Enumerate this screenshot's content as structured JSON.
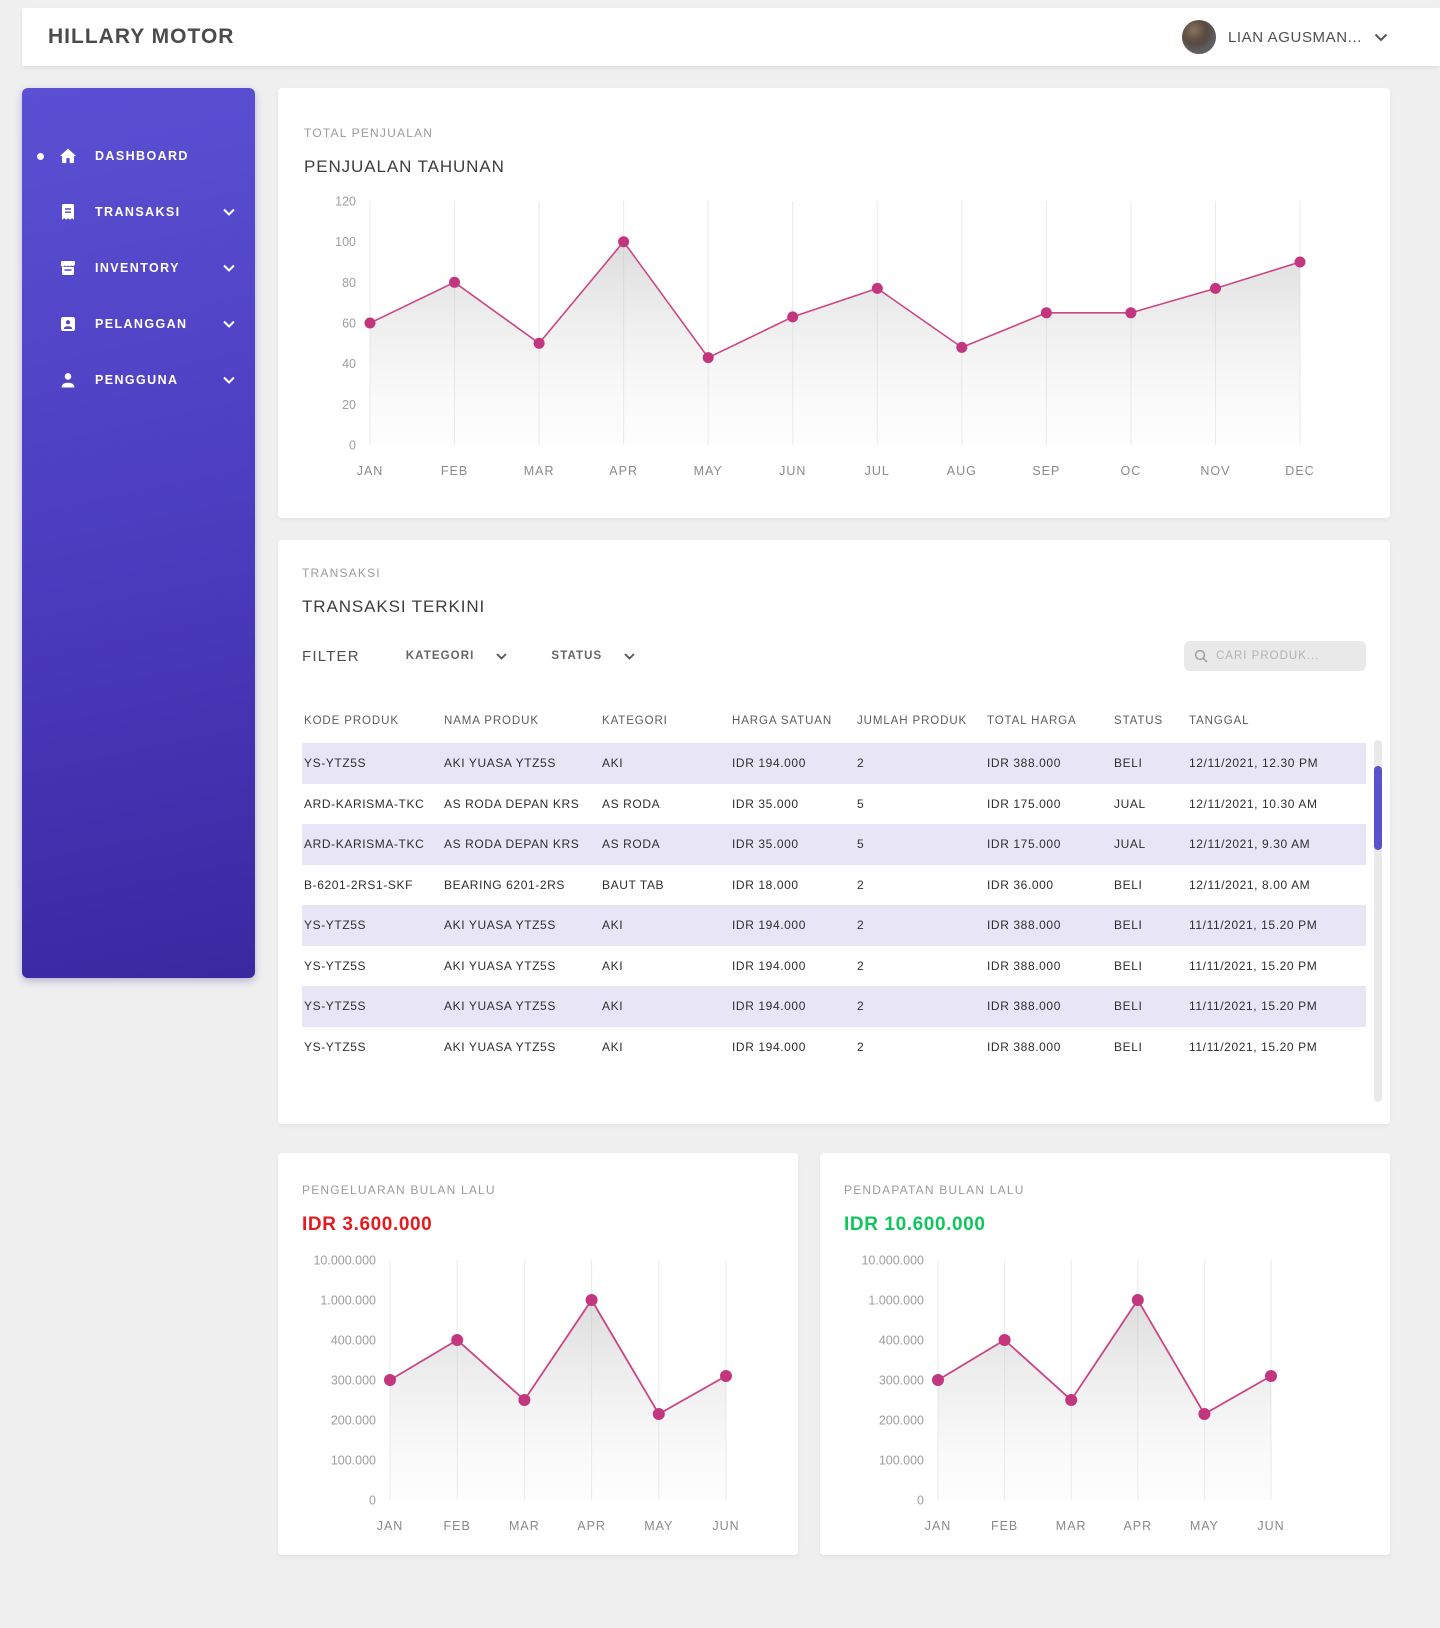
{
  "header": {
    "brand": "HILLARY MOTOR",
    "user_name": "LIAN AGUSMAN..."
  },
  "sidebar": {
    "items": [
      {
        "label": "DASHBOARD",
        "icon": "home-icon",
        "active": true
      },
      {
        "label": "TRANSAKSI",
        "icon": "receipt-icon",
        "expandable": true
      },
      {
        "label": "INVENTORY",
        "icon": "store-icon",
        "expandable": true
      },
      {
        "label": "PELANGGAN",
        "icon": "customer-icon",
        "expandable": true
      },
      {
        "label": "PENGGUNA",
        "icon": "user-icon",
        "expandable": true
      }
    ]
  },
  "sales_card": {
    "eyebrow": "TOTAL PENJUALAN",
    "title": "PENJUALAN TAHUNAN"
  },
  "transactions_card": {
    "eyebrow": "TRANSAKSI",
    "title": "TRANSAKSI TERKINI",
    "filter_label": "FILTER",
    "filters": [
      {
        "label": "KATEGORI"
      },
      {
        "label": "STATUS"
      }
    ],
    "search_placeholder": "CARI PRODUK...",
    "columns": [
      "KODE PRODUK",
      "NAMA PRODUK",
      "KATEGORI",
      "HARGA SATUAN",
      "JUMLAH PRODUK",
      "TOTAL HARGA",
      "STATUS",
      "TANGGAL"
    ],
    "rows": [
      [
        "YS-YTZ5S",
        "AKI YUASA YTZ5S",
        "AKI",
        "IDR 194.000",
        "2",
        "IDR 388.000",
        "BELI",
        "12/11/2021,  12.30 PM"
      ],
      [
        "ARD-KARISMA-TKC",
        "AS RODA DEPAN KRS",
        "AS RODA",
        "IDR 35.000",
        "5",
        "IDR 175.000",
        "JUAL",
        "12/11/2021,  10.30 AM"
      ],
      [
        "ARD-KARISMA-TKC",
        "AS RODA DEPAN KRS",
        "AS RODA",
        "IDR 35.000",
        "5",
        "IDR 175.000",
        "JUAL",
        "12/11/2021,  9.30 AM"
      ],
      [
        "B-6201-2RS1-SKF",
        "BEARING 6201-2RS",
        "BAUT TAB",
        "IDR 18.000",
        "2",
        "IDR 36.000",
        "BELI",
        "12/11/2021,  8.00 AM"
      ],
      [
        "YS-YTZ5S",
        "AKI YUASA YTZ5S",
        "AKI",
        "IDR 194.000",
        "2",
        "IDR 388.000",
        "BELI",
        "11/11/2021,  15.20 PM"
      ],
      [
        "YS-YTZ5S",
        "AKI YUASA YTZ5S",
        "AKI",
        "IDR 194.000",
        "2",
        "IDR 388.000",
        "BELI",
        "11/11/2021,  15.20 PM"
      ],
      [
        "YS-YTZ5S",
        "AKI YUASA YTZ5S",
        "AKI",
        "IDR 194.000",
        "2",
        "IDR 388.000",
        "BELI",
        "11/11/2021,  15.20 PM"
      ],
      [
        "YS-YTZ5S",
        "AKI YUASA YTZ5S",
        "AKI",
        "IDR 194.000",
        "2",
        "IDR 388.000",
        "BELI",
        "11/11/2021,  15.20 PM"
      ]
    ]
  },
  "expense_card": {
    "eyebrow": "PENGELUARAN BULAN LALU",
    "amount": "IDR 3.600.000",
    "amount_color": "#e51b20"
  },
  "income_card": {
    "eyebrow": "PENDAPATAN BULAN LALU",
    "amount": "IDR 10.600.000",
    "amount_color": "#10c55b"
  },
  "chart_data": [
    {
      "name": "penjualan-tahunan",
      "type": "line",
      "title": "PENJUALAN TAHUNAN",
      "categories": [
        "JAN",
        "FEB",
        "MAR",
        "APR",
        "MAY",
        "JUN",
        "JUL",
        "AUG",
        "SEP",
        "OC",
        "NOV",
        "DEC"
      ],
      "values": [
        60,
        80,
        50,
        100,
        43,
        63,
        77,
        48,
        65,
        65,
        77,
        90
      ],
      "ytick_values": [
        0,
        20,
        40,
        60,
        80,
        100,
        120
      ],
      "ytick_labels": [
        "0",
        "20",
        "40",
        "60",
        "80",
        "100",
        "120"
      ],
      "ylim": [
        0,
        120
      ],
      "grid": "vertical",
      "legend": "none",
      "line_color": "#cb4687",
      "point_color": "#c23680",
      "fill": "gray-gradient"
    },
    {
      "name": "pengeluaran-bulan-lalu",
      "type": "line",
      "title": "PENGELUARAN BULAN LALU",
      "categories": [
        "JAN",
        "FEB",
        "MAR",
        "APR",
        "MAY",
        "JUN"
      ],
      "values": [
        300000,
        400000,
        250000,
        1000000,
        215000,
        310000
      ],
      "ytick_values": [
        0,
        100000,
        200000,
        300000,
        400000,
        1000000,
        10000000
      ],
      "ytick_labels": [
        "0",
        "100.000",
        "200.000",
        "300.000",
        "400.000",
        "1.000.000",
        "10.000.000"
      ],
      "yscale": "ordinal-between-ticks",
      "grid": "vertical",
      "legend": "none",
      "line_color": "#cb4687",
      "point_color": "#c23680",
      "fill": "gray-gradient"
    },
    {
      "name": "pendapatan-bulan-lalu",
      "type": "line",
      "title": "PENDAPATAN BULAN LALU",
      "categories": [
        "JAN",
        "FEB",
        "MAR",
        "APR",
        "MAY",
        "JUN"
      ],
      "values": [
        300000,
        400000,
        250000,
        1000000,
        215000,
        310000
      ],
      "ytick_values": [
        0,
        100000,
        200000,
        300000,
        400000,
        1000000,
        10000000
      ],
      "ytick_labels": [
        "0",
        "100.000",
        "200.000",
        "300.000",
        "400.000",
        "1.000.000",
        "10.000.000"
      ],
      "yscale": "ordinal-between-ticks",
      "grid": "vertical",
      "legend": "none",
      "line_color": "#cb4687",
      "point_color": "#c23680",
      "fill": "gray-gradient"
    }
  ]
}
